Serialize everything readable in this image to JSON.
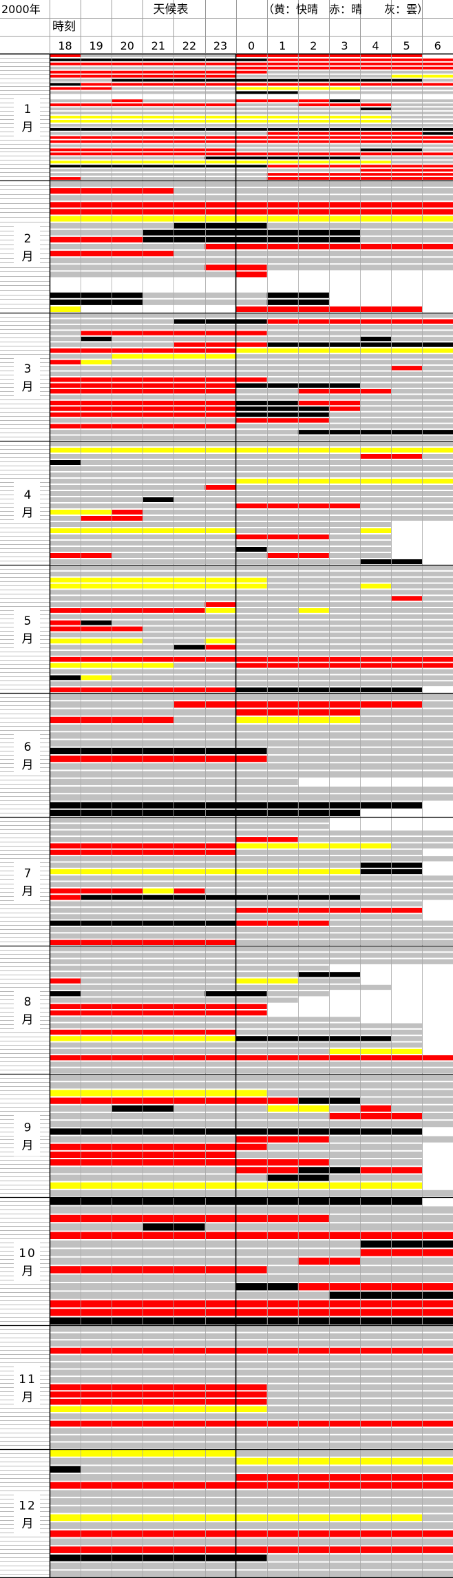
{
  "header": {
    "year": "2000年",
    "time_label": "時刻",
    "title": "天候表",
    "legend": "（黄：快晴　赤：晴　　灰：雲）"
  },
  "chart_data": {
    "type": "heatmap",
    "title": "天候表",
    "hours": [
      "18",
      "19",
      "20",
      "21",
      "22",
      "23",
      "0",
      "1",
      "2",
      "3",
      "4",
      "5",
      "6"
    ],
    "months": [
      "1月",
      "2月",
      "3月",
      "4月",
      "5月",
      "6月",
      "7月",
      "8月",
      "9月",
      "10月",
      "11月",
      "12月"
    ],
    "days_per_month": [
      31,
      29,
      31,
      30,
      31,
      30,
      31,
      31,
      30,
      31,
      30,
      31
    ],
    "category_key": {
      "Y": "快晴",
      "R": "晴",
      "G": "雲",
      "K": "black (unlabeled)",
      "W": "no entry"
    },
    "colors": {
      "Y": "#ffff00",
      "R": "#ff0000",
      "G": "#c0c0c0",
      "K": "#000000",
      "W": "#ffffff"
    },
    "grid": true,
    "encoding": "one string per day, one character per hour column 18..6",
    "rows": [
      [
        "RGGGGGRRRRRRW",
        "KKKKKKKRRRRRR",
        "RRRRRRRRRRRRR",
        "GGGGGGRRRRRRR",
        "RRRRRRRGGGGGG",
        "RRRRRRGGGGGYY",
        "GGKKKKKKKKKKG",
        "KRRRRRRRRRRRR",
        "RRGGGGYYYYGGG",
        "GGGGGGKKGGGGG",
        "WWWWWWWWWWWWW",
        "GGRGGGRRRKGGG",
        "RRRRRRGGRRRGG",
        "GGGGGGGGGGKGG",
        "GGGGGGGGGGGGG",
        "YYYYYYYYYYYGG",
        "YYYYYYYYYYYGG",
        "GGGGGGGGGGGGG",
        "KKKKKKKKKKKKK",
        "GGGGGGGRRRRRK",
        "RRRRRRRRRRRRR",
        "RRRRRRRRRRRRR",
        "GGGGGGGGGGGGG",
        "RRRRRRGGGGKKG",
        "RRRRRRRRRRRRR",
        "GGGGGKKKKKGGG",
        "YYYYYYYYYYYGG",
        "KKKKKKKRRRRRR",
        "GGGGGGGGGGRRR",
        "GGGGGGGRRRRRR",
        "RGGGGGGRRRRRR"
      ],
      [
        "GGGGGGGGGGGGG",
        "RRRRGGGGGGGGG",
        "GGGGGGGGGGGGG",
        "RRRRRRRRRRRRR",
        "RRRRRRRRRRRRR",
        "YYYYYYYYYYYYY",
        "GGGGKKKGGGGGG",
        "GGGKKKKKKKGGG",
        "RRRKKKKKKKGGG",
        "GGGGGRRRRRRRR",
        "RRRRGGGGGGGGG",
        "GGGGGGGGGGGGG",
        "GGGGGRRGGGGGG",
        "GGGGGGRWWWWWW",
        "WWWWWWWWWWWWW",
        "WWWWWWWWWWWWW",
        "KKKGGGGKKWWWW",
        "KKKGGGGKKWWWW",
        "YWWWWWRRRRRRW"
      ],
      [
        "GGGGGGGGGGGGG",
        "GGGGKKKRRRRRR",
        "GGGGGGGGGGGGG",
        "GRRRRRRGGGGGG",
        "GKGGGGGGGGKGG",
        "GGGGRRRKKKKKK",
        "RRRRRRYYYYYYY",
        "GGYYYYGGGGGGG",
        "RYGGGGGGGGGGG",
        "GGGGGGGGGGGRG",
        "GGGGGGGGGGGGG",
        "RRRRRRRGGGGGG",
        "RRRRRRKKKKGGG",
        "RRRRRRGGRRRGG",
        "GGGGGGGGGGGGG",
        "RRRRRRKKRRGGG",
        "RRRRRRKKKRGGG",
        "RRRRRRKKKGGGG",
        "GGGGGGRRRGGGG",
        "RRRRRRGGGGGGG",
        "GGGGGGGGKKKKK",
        "GGGGGGGGGGGGG"
      ],
      [
        "GGGGGGGGGGGGG",
        "YYYYYYYYYYYYY",
        "GGGGGGGGGGRRG",
        "KGGGGGGGGGGGG",
        "GGGGGGGGGGGGG",
        "GGGGGGGGGGGGG",
        "GGGGGGYYYYYYY",
        "GGGGGRGGGGGGG",
        "GGGGGGGGGGGGG",
        "GGGKGGGGGGGGG",
        "GGGGGGRRRRGGG",
        "YYRGGGGGGGGGG",
        "GRRGGGGGGGGGG",
        "GGGGGGGGGGGWW",
        "YYYYYYGGGGYWW",
        "GGGGGGRRRGGWW",
        "GGGGGGGGGGGWW",
        "GGGGGGKGGGGWW",
        "RRGGGGGRRGGWW",
        "GGGGGGGGGGKKW"
      ],
      [
        "GGGGGGGGGGGGG",
        "GGGGGGGGGGGGG",
        "YYYYYYYGGGGGG",
        "YYYYYYYGGGYGG",
        "GGGGGGGGGGGGG",
        "GGGGGGGGGGGRG",
        "GGGGGRGGGGGGG",
        "RRRRRYGGYGGGG",
        "GGGGGGGGGGGGG",
        "RKGGGGGGGGGGG",
        "RRRGGGGGGGGGG",
        "GGGGGGGGGGGGG",
        "YYYGGYGGGGGGG",
        "GGGGKRGGGGGGG",
        "GGGGGGGGGGGGG",
        "RRRRRRRRRRRRR",
        "YYYYGGRRRRRRR",
        "GGGGGGGGGGGGG",
        "KYGGGGGGGGGGG",
        "GGGGGGGGGGGGG",
        "RRRRRRKKKKKKW"
      ],
      [
        "GGGGGGGGGGGGG",
        "GGGGRRRRRRRRG",
        "GGGGGGRRRRGGG",
        "RRRRGGYYYYGGG",
        "GGGGGGGGGGGGG",
        "GGGGGGGGGGGGG",
        "GGGGGGGGGGGGG",
        "KKKKKKKGGGGGG",
        "RRRRRRRGGGGGG",
        "GGGGGGGGGGGGG",
        "GGGGGGGGGGGGG",
        "GGGGGGGGWWWWW",
        "GGGGGGGGGGGGG",
        "GGGGGGGGGGGGG",
        "KKKKKKKKKKKKW",
        "KKKKKKKKKKWWW"
      ],
      [
        "GGGGGGGGGWWWW",
        "GGGGGGGGGWWWW",
        "GGGGGGGGGGGGG",
        "GGGGGGRRGGGGG",
        "RRRRRRYYYYYGG",
        "RRRRRRGGGGGGW",
        "GGGGGGGGGGGGG",
        "GGGGGGGGGGKKW",
        "YYYYYYYYYYKKW",
        "GGGGGGGGGGGGG",
        "GGGGGGGGGGGGG",
        "RRRYRGGGGGGGG",
        "RKKKKKKKKKGGG",
        "GGGGGGGGGGGGW",
        "GGGGGGRRRRRRW",
        "GGGGGGGGGGGGW",
        "KKKKKKRRRGGGG",
        "GGGGGGGGGGGGG",
        "GGGGGGGGGGGGG",
        "RRRRRRGGGGGGG"
      ],
      [
        "GGGGGGGGGGGGG",
        "GGGGGGGGGGGGG",
        "GGGGGGGGGGGGG",
        "GGGGGGGGGWWWW",
        "GGGGGGGGKKWWW",
        "RGGGGGYYGGWWW",
        "GGGGGGGGGGGWW",
        "KGGGGKKGGWWWW",
        "GGGGGGGGWWWWW",
        "RRRRRRRWWWWWW",
        "RRRRRRRWWWWWW",
        "GGGGGGGGGGWWW",
        "GGGGGGGGGGGGW",
        "RRRRRRGGGGGGW",
        "YYYYYYKKKKKGW",
        "GGGGGGGGGGGGW",
        "GGGGGGGGGYYYW",
        "RRRRRRRRRRRRR",
        "GGGGGGGGGGGGG",
        "GGGGGGGGGGGGG"
      ],
      [
        "GGGGGGGGGGGGG",
        "GGGGGGGGGGGGG",
        "YYYYYYYGGGGGG",
        "RRRRRRRRKKGGG",
        "GGKKGGGYYGRGG",
        "GGGGGGGGGRRRG",
        "GGGGGGGGGGGGG",
        "KKKKKKKKKKKKW",
        "GGGGGGRRRGGGG",
        "RRRRRRRGGGGGW",
        "RRRRRRGGGGGGW",
        "RRRRRRRRRGGGW",
        "GGGGGGRRKKRRW",
        "GGGGGGGKKGGGW",
        "YYYYYYYYYYYYW",
        "GGGGGGGGGGGGG"
      ],
      [
        "KKKKKKKKKKKKW",
        "GGGGGGGGGGGGG",
        "RRRRRRRRRGGGG",
        "GGGKKGGGGGGGG",
        "RRRRRRRRRRRRR",
        "GGGGGGGGGGKKK",
        "GGGGGGGGGGRRR",
        "GGGGGGGGRRGGG",
        "RRRRRRRGGGGGG",
        "GGGGGGGGGGGGG",
        "GGGGGGKKRRRRR",
        "GGGGGGGGGKKKK",
        "RRRRRRRRRRRRR",
        "RRRRRRRRRRRRR",
        "KKKKKKKKKKKKK"
      ],
      [
        "GGGGGGGGGGGGG",
        "GGGGGGGGGGGGG",
        "GGGGGGGGGGGGG",
        "RRRRRRRRRRRRR",
        "GGGGGGGGGGGGG",
        "GGGGGGGGGGGGG",
        "GGGGGGGGGGGGG",
        "GGGGGGGGGGGGG",
        "RRRRRRRGGGGGG",
        "RRRRRRRGGGGGG",
        "RRRRRRRGGGGGG",
        "YYYYYYYGGGGGG",
        "GGGGGGGGGGGGG",
        "RRRRRRRRRRRRR",
        "GGGGGGGGGGGGG",
        "GGGGGGGGGGGGG",
        "GGGGGGGGGGGGG"
      ],
      [
        "YYYYYYGGGGGGG",
        "GGGGGGYYYYYYY",
        "KGGGGGGGGGGGG",
        "GGGGGGRRRRRRR",
        "RRRRRRRRRRRRR",
        "GGGGGGGGGGGGG",
        "GGGGGGGGGGGGG",
        "GGGGGGGGGGGGG",
        "YYYYYYYYYYYYG",
        "GGGGGGGGGGGGG",
        "RRRRRRRRRRRRR",
        "GGGGGGGGGGGGG",
        "RRRRRRRRRRRRR",
        "KKKKKKKGGGGGG",
        "GGGGGGGGGGGGG",
        "GGGGGGGGGGGGG"
      ]
    ]
  }
}
